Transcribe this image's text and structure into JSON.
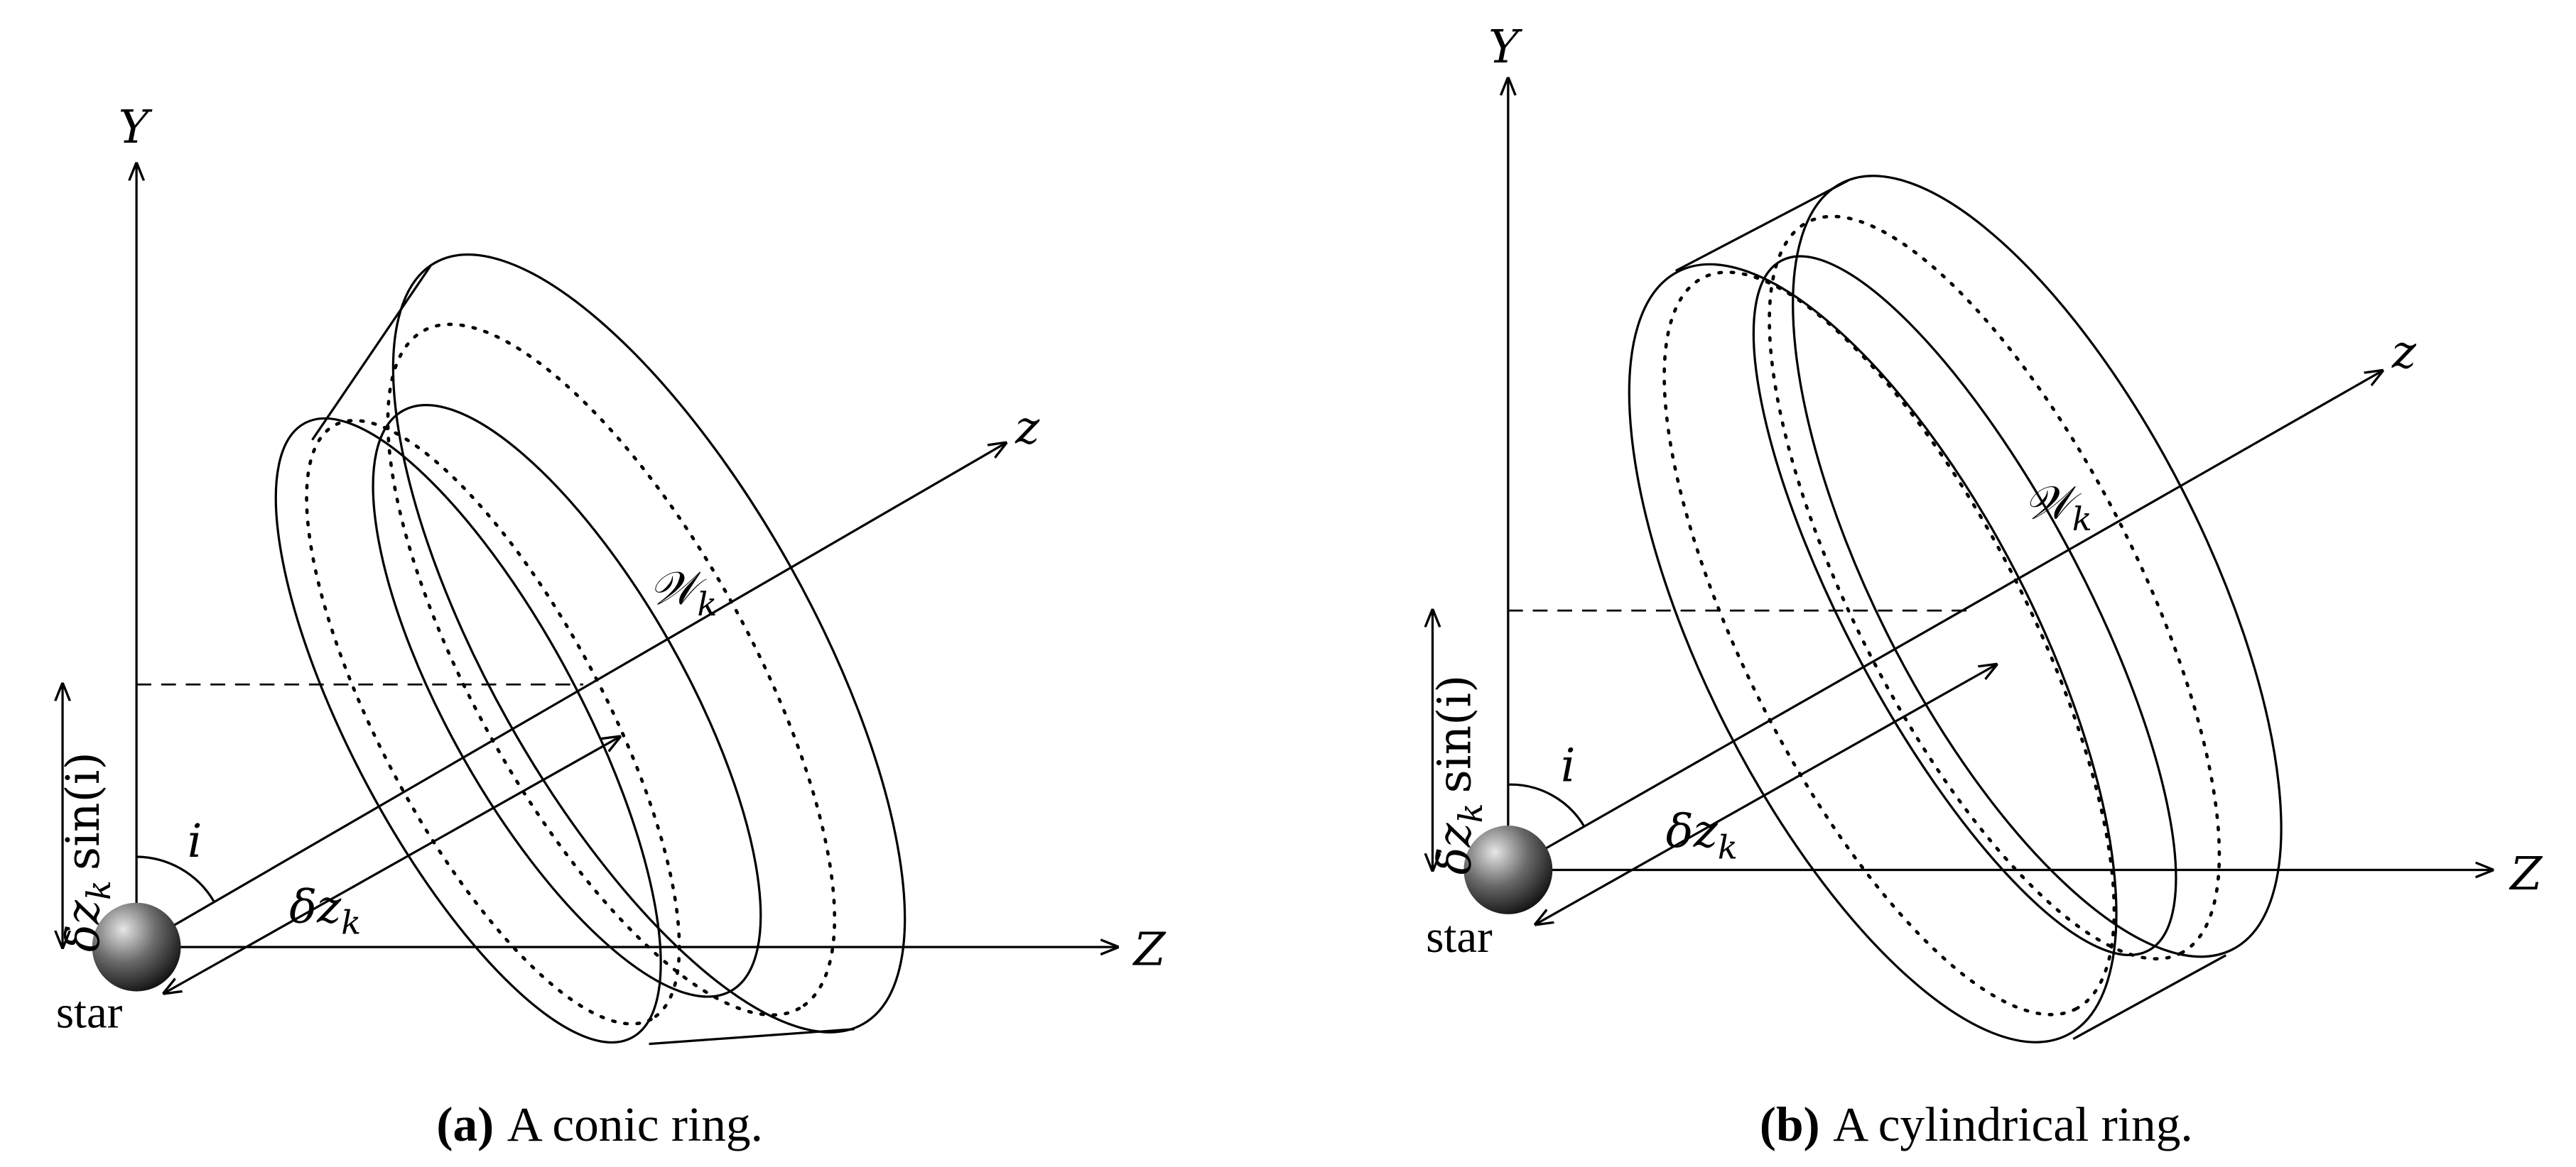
{
  "panels": [
    {
      "tag": "(a)",
      "caption": "A conic ring.",
      "y_axis": "Y",
      "z_axis": "Z",
      "ring_axis": "z",
      "angle": "i",
      "offset": "δz",
      "offset_sub": "k",
      "ring": "𝒲",
      "ring_sub": "k",
      "star": "star",
      "height": "δz",
      "height_sub": "k",
      "height_tail": "sin(i)"
    },
    {
      "tag": "(b)",
      "caption": "A cylindrical ring.",
      "y_axis": "Y",
      "z_axis": "Z",
      "ring_axis": "z",
      "angle": "i",
      "offset": "δz",
      "offset_sub": "k",
      "ring": "𝒲",
      "ring_sub": "k",
      "star": "star",
      "height": "δz",
      "height_sub": "k",
      "height_tail": "sin(i)"
    }
  ]
}
